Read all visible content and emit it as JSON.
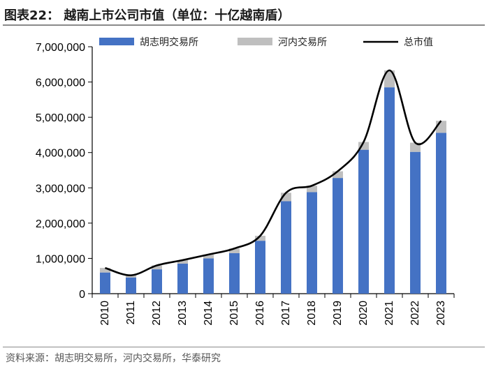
{
  "title": "图表22：  越南上市公司市值（单位：十亿越南盾）",
  "source": "资料来源：胡志明交易所，河内交易所，华泰研究",
  "chart_data": {
    "type": "bar",
    "stacked": true,
    "categories": [
      "2010",
      "2011",
      "2012",
      "2013",
      "2014",
      "2015",
      "2016",
      "2017",
      "2018",
      "2019",
      "2020",
      "2021",
      "2022",
      "2023"
    ],
    "series": [
      {
        "name": "胡志明交易所",
        "kind": "bar",
        "color": "#4472C4",
        "values": [
          600000,
          460000,
          690000,
          850000,
          1000000,
          1150000,
          1500000,
          2620000,
          2880000,
          3280000,
          4080000,
          5850000,
          4020000,
          4560000
        ]
      },
      {
        "name": "河内交易所",
        "kind": "bar",
        "color": "#BFBFBF",
        "values": [
          130000,
          60000,
          110000,
          100000,
          110000,
          130000,
          140000,
          240000,
          180000,
          190000,
          220000,
          480000,
          260000,
          340000
        ]
      },
      {
        "name": "总市值",
        "kind": "line",
        "color": "#000000",
        "values": [
          730000,
          520000,
          800000,
          950000,
          1110000,
          1280000,
          1640000,
          2860000,
          3060000,
          3470000,
          4300000,
          6330000,
          4280000,
          4900000
        ]
      }
    ],
    "ylim": [
      0,
      7000000
    ],
    "yticks": [
      "0",
      "1,000,000",
      "2,000,000",
      "3,000,000",
      "4,000,000",
      "5,000,000",
      "6,000,000",
      "7,000,000"
    ],
    "xlabel": "",
    "ylabel": "",
    "legend": "top",
    "grid": false
  }
}
